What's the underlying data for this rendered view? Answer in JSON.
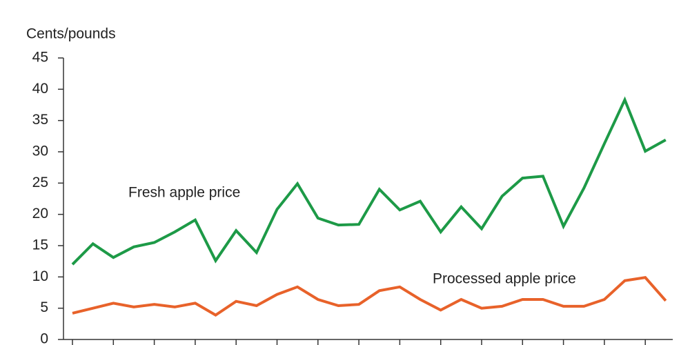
{
  "chart_data": {
    "type": "line",
    "y_label": "Cents/pounds",
    "categories": [
      null,
      null,
      null,
      null,
      null,
      null,
      null,
      null,
      null,
      null,
      null,
      null,
      null,
      null,
      null,
      null,
      null,
      null,
      null,
      null,
      null,
      null,
      null,
      null,
      null,
      null,
      null,
      null,
      null,
      null
    ],
    "series": [
      {
        "name": "Fresh apple price",
        "color": "#1d9a47",
        "values": [
          12,
          15.3,
          13.1,
          14.8,
          15.5,
          17.2,
          19.1,
          12.6,
          17.4,
          13.9,
          20.8,
          24.9,
          19.4,
          18.3,
          18.4,
          24,
          20.7,
          22.1,
          17.2,
          21.2,
          17.7,
          22.9,
          25.8,
          26.1,
          18.1,
          24.2,
          31.3,
          38.3,
          30.1,
          31.9
        ]
      },
      {
        "name": "Processed apple price",
        "color": "#e8622a",
        "values": [
          4.2,
          5.0,
          5.8,
          5.2,
          5.6,
          5.2,
          5.8,
          3.9,
          6.1,
          5.4,
          7.2,
          8.4,
          6.4,
          5.4,
          5.6,
          7.8,
          8.4,
          6.4,
          4.7,
          6.4,
          5.0,
          5.3,
          6.4,
          6.4,
          5.3,
          5.3,
          6.4,
          9.4,
          9.9,
          6.2
        ]
      }
    ],
    "ylim": [
      0,
      45
    ],
    "yticks": [
      0,
      5,
      10,
      15,
      20,
      25,
      30,
      35,
      40,
      45
    ],
    "grid": false
  }
}
